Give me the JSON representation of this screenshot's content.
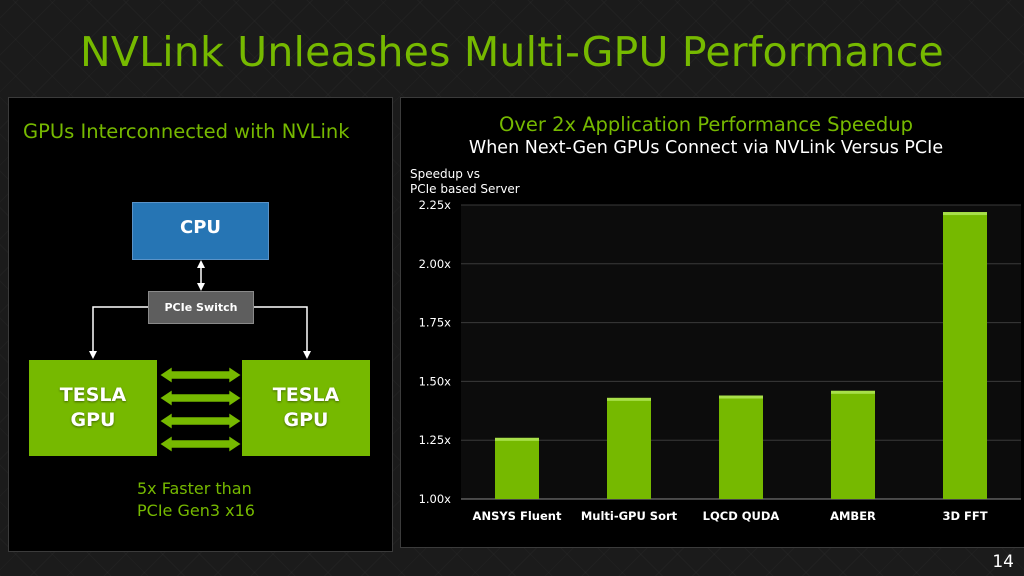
{
  "slide": {
    "title": "NVLink Unleashes Multi-GPU Performance",
    "page_number": "14"
  },
  "colors": {
    "nvidia_green": "#76b900",
    "cpu_blue": "#2675b4",
    "switch_gray": "#5e5e5e",
    "background": "#1b1b1b"
  },
  "left_panel": {
    "heading": "GPUs Interconnected with NVLink",
    "cpu_label": "CPU",
    "pcie_switch_label": "PCIe Switch",
    "gpu_left": {
      "line1": "TESLA",
      "line2": "GPU"
    },
    "gpu_right": {
      "line1": "TESLA",
      "line2": "GPU"
    },
    "note_line1": "5x Faster than",
    "note_line2": "PCIe Gen3 x16"
  },
  "right_panel": {
    "title_line1": "Over 2x Application Performance Speedup",
    "title_line2": "When Next-Gen GPUs Connect via NVLink Versus PCIe",
    "ylabel_line1": "Speedup vs",
    "ylabel_line2": "PCIe based Server"
  },
  "chart_data": {
    "type": "bar",
    "title": "Over 2x Application Performance Speedup",
    "subtitle": "When Next-Gen GPUs Connect via NVLink Versus PCIe",
    "ylabel": "Speedup vs PCIe based Server",
    "xlabel": "",
    "categories": [
      "ANSYS Fluent",
      "Multi-GPU Sort",
      "LQCD QUDA",
      "AMBER",
      "3D FFT"
    ],
    "values": [
      1.26,
      1.43,
      1.44,
      1.46,
      2.22
    ],
    "ylim": [
      1.0,
      2.25
    ],
    "yticks": [
      1.0,
      1.25,
      1.5,
      1.75,
      2.0,
      2.25
    ],
    "ytick_labels": [
      "1.00x",
      "1.25x",
      "1.50x",
      "1.75x",
      "2.00x",
      "2.25x"
    ],
    "bar_color": "#76b900",
    "grid": true,
    "legend": "none"
  }
}
